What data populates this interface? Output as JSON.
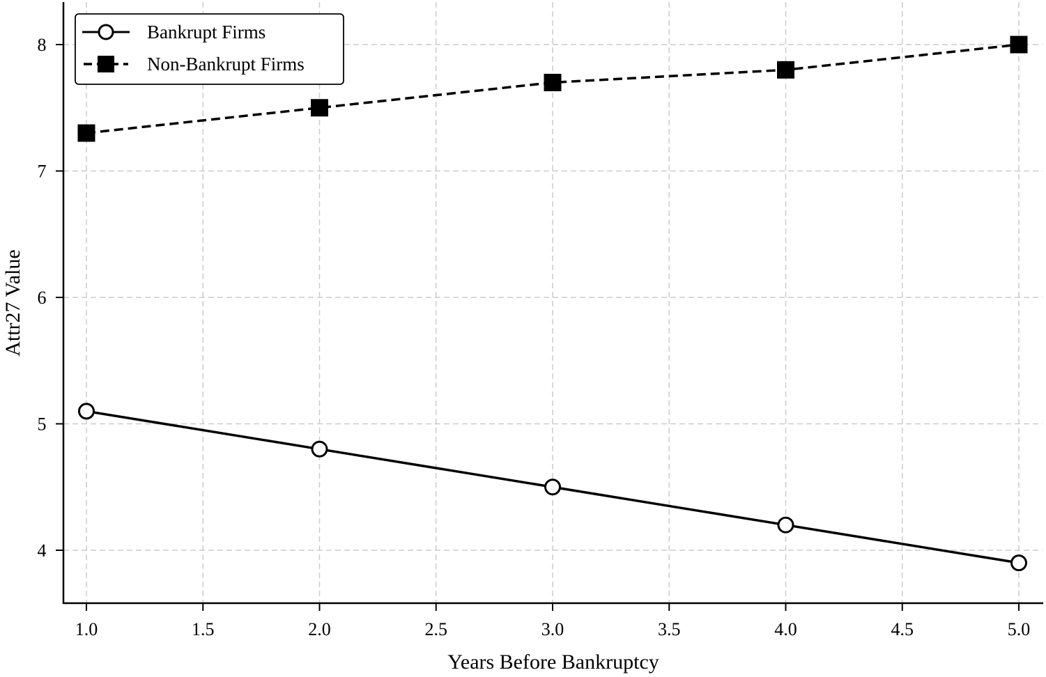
{
  "chart_data": {
    "type": "line",
    "title": "",
    "xlabel": "Years Before Bankruptcy",
    "ylabel": "Attr27 Value",
    "x": [
      1.0,
      2.0,
      3.0,
      4.0,
      5.0
    ],
    "series": [
      {
        "name": "Bankrupt Firms",
        "values": [
          5.1,
          4.8,
          4.5,
          4.2,
          3.9
        ],
        "linestyle": "solid",
        "marker": "open-circle",
        "color": "#000000"
      },
      {
        "name": "Non-Bankrupt Firms",
        "values": [
          7.3,
          7.5,
          7.7,
          7.8,
          8.0
        ],
        "linestyle": "dashed",
        "marker": "filled-square",
        "color": "#000000"
      }
    ],
    "xticks": [
      "1.0",
      "1.5",
      "2.0",
      "2.5",
      "3.0",
      "3.5",
      "4.0",
      "4.5",
      "5.0"
    ],
    "yticks": [
      "4",
      "5",
      "6",
      "7",
      "8"
    ],
    "xlim": [
      0.9,
      5.1
    ],
    "ylim": [
      3.58,
      8.33
    ],
    "grid": true,
    "grid_color": "#cccccc",
    "legend_position": "upper left"
  }
}
